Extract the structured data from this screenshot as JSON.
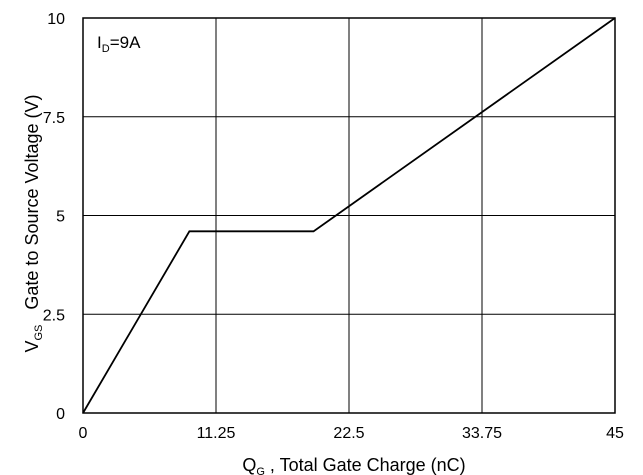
{
  "chart_data": {
    "type": "line",
    "title": "",
    "annotation": {
      "main": "I",
      "sub": "D",
      "rest": "=9A"
    },
    "xlabel": {
      "main": "Q",
      "sub": "G",
      "rest": " , Total Gate Charge (nC)"
    },
    "ylabel": {
      "main": "V",
      "sub": "GS",
      "rest": "   Gate to Source Voltage (V)"
    },
    "xlim": [
      0,
      45
    ],
    "ylim": [
      0,
      10
    ],
    "xticks": [
      0,
      11.25,
      22.5,
      33.75,
      45
    ],
    "xtick_labels": [
      "0",
      "11.25",
      "22.5",
      "33.75",
      "45"
    ],
    "yticks": [
      0,
      2.5,
      5,
      7.5,
      10
    ],
    "ytick_labels": [
      "0",
      "2.5",
      "5",
      "7.5",
      "10"
    ],
    "grid": true,
    "series": [
      {
        "color": "#000000",
        "x": [
          0,
          9.0,
          19.5,
          45
        ],
        "y": [
          0,
          4.6,
          4.6,
          10
        ]
      }
    ]
  }
}
